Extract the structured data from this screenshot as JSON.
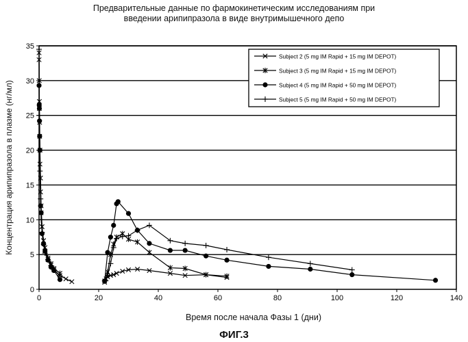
{
  "chart_data": {
    "type": "line",
    "title_line1": "Предварительные данные по фармокинетическим исследованиям при",
    "title_line2": "введении арипипразола в виде внутримышечного депо",
    "xlabel": "Время после начала Фазы 1 (дни)",
    "ylabel": "Концентрация арипипразола в плазме (нг/мл)",
    "figure_label": "ФИГ.3",
    "xlim": [
      0,
      140
    ],
    "ylim": [
      0,
      35
    ],
    "x_ticks": [
      0,
      20,
      40,
      60,
      80,
      100,
      120,
      140
    ],
    "y_ticks": [
      0,
      5,
      10,
      15,
      20,
      25,
      30,
      35
    ],
    "grid": "horizontal",
    "legend_position": "top-right",
    "series": [
      {
        "name": "Subject 2 (5 mg IM Rapid + 15 mg IM DEPOT)",
        "marker": "x",
        "segments": [
          [
            [
              0,
              34
            ],
            [
              0.05,
              30
            ],
            [
              0.1,
              26
            ],
            [
              0.2,
              22
            ],
            [
              0.3,
              18
            ],
            [
              0.5,
              14
            ],
            [
              0.7,
              11
            ],
            [
              1,
              9
            ],
            [
              1.5,
              7
            ],
            [
              2,
              5.5
            ],
            [
              3,
              4.3
            ],
            [
              4,
              3.5
            ],
            [
              5,
              2.8
            ],
            [
              7,
              2
            ],
            [
              9,
              1.5
            ],
            [
              11,
              1.1
            ]
          ],
          [
            [
              22,
              1
            ],
            [
              22.5,
              1.5
            ],
            [
              23,
              1.8
            ],
            [
              24,
              2
            ],
            [
              25,
              2.1
            ],
            [
              26,
              2.3
            ],
            [
              28,
              2.6
            ],
            [
              30,
              2.8
            ],
            [
              33,
              2.9
            ],
            [
              37,
              2.7
            ],
            [
              44,
              2.3
            ],
            [
              49,
              2
            ],
            [
              56,
              2.1
            ],
            [
              63,
              1.7
            ]
          ]
        ]
      },
      {
        "name": "Subject 3 (5 mg IM Rapid + 15 mg IM DEPOT)",
        "marker": "asterisk",
        "segments": [
          [
            [
              0,
              33
            ],
            [
              0.1,
              27
            ],
            [
              0.2,
              24
            ],
            [
              0.3,
              20
            ],
            [
              0.5,
              16
            ],
            [
              0.7,
              12
            ],
            [
              1,
              9
            ],
            [
              1.5,
              7
            ],
            [
              2,
              6
            ],
            [
              3,
              4.5
            ],
            [
              4,
              3.7
            ],
            [
              5,
              3
            ],
            [
              7,
              2.3
            ]
          ],
          [
            [
              22,
              1.2
            ],
            [
              23,
              2.5
            ],
            [
              24,
              5
            ],
            [
              25,
              6.5
            ],
            [
              26,
              7.5
            ],
            [
              28,
              8
            ],
            [
              30,
              7.2
            ],
            [
              33,
              6.8
            ],
            [
              37,
              5.3
            ],
            [
              44,
              3.1
            ],
            [
              49,
              3
            ],
            [
              56,
              2.1
            ],
            [
              63,
              1.9
            ]
          ]
        ]
      },
      {
        "name": "Subject 4 (5 mg IM Rapid + 50 mg IM DEPOT)",
        "marker": "circle",
        "segments": [
          [
            [
              0,
              29.3
            ],
            [
              0.05,
              26.5
            ],
            [
              0.1,
              26
            ],
            [
              0.15,
              24.2
            ],
            [
              0.2,
              22
            ],
            [
              0.3,
              20
            ],
            [
              0.5,
              12
            ],
            [
              0.7,
              11
            ],
            [
              1,
              8
            ],
            [
              1.5,
              6.5
            ],
            [
              2,
              5.5
            ],
            [
              3,
              4.2
            ],
            [
              4,
              3.2
            ],
            [
              5,
              2.7
            ],
            [
              7,
              1.4
            ]
          ],
          [
            [
              22,
              1.2
            ],
            [
              23,
              5.3
            ],
            [
              24,
              7.5
            ],
            [
              25,
              9.2
            ],
            [
              26,
              12.3
            ],
            [
              26.5,
              12.6
            ],
            [
              30,
              10.9
            ],
            [
              33,
              8.5
            ],
            [
              37,
              6.6
            ],
            [
              44,
              5.6
            ],
            [
              49,
              5.6
            ],
            [
              56,
              4.8
            ],
            [
              63,
              4.2
            ],
            [
              77,
              3.3
            ],
            [
              91,
              2.9
            ],
            [
              105,
              2.1
            ],
            [
              133,
              1.3
            ]
          ]
        ]
      },
      {
        "name": "Subject 5 (5 mg IM Rapid + 50 mg IM DEPOT)",
        "marker": "plus",
        "segments": [
          [
            [
              0,
              34.5
            ],
            [
              0.1,
              25
            ],
            [
              0.2,
              20
            ],
            [
              0.3,
              17
            ],
            [
              0.5,
              13
            ],
            [
              0.7,
              10
            ],
            [
              1,
              8.2
            ],
            [
              1.5,
              6.5
            ],
            [
              2,
              5.2
            ],
            [
              3,
              4.3
            ],
            [
              4,
              3.4
            ],
            [
              5,
              2.8
            ],
            [
              7,
              1.9
            ]
          ],
          [
            [
              22,
              1.2
            ],
            [
              23,
              2
            ],
            [
              24,
              3.7
            ],
            [
              25,
              6
            ],
            [
              26,
              7.3
            ],
            [
              28,
              7.6
            ],
            [
              30,
              7.7
            ],
            [
              33,
              8.5
            ],
            [
              37,
              9.2
            ],
            [
              44,
              7
            ],
            [
              49,
              6.6
            ],
            [
              56,
              6.3
            ],
            [
              63,
              5.7
            ],
            [
              77,
              4.6
            ],
            [
              91,
              3.7
            ],
            [
              105,
              2.8
            ]
          ]
        ]
      }
    ]
  }
}
